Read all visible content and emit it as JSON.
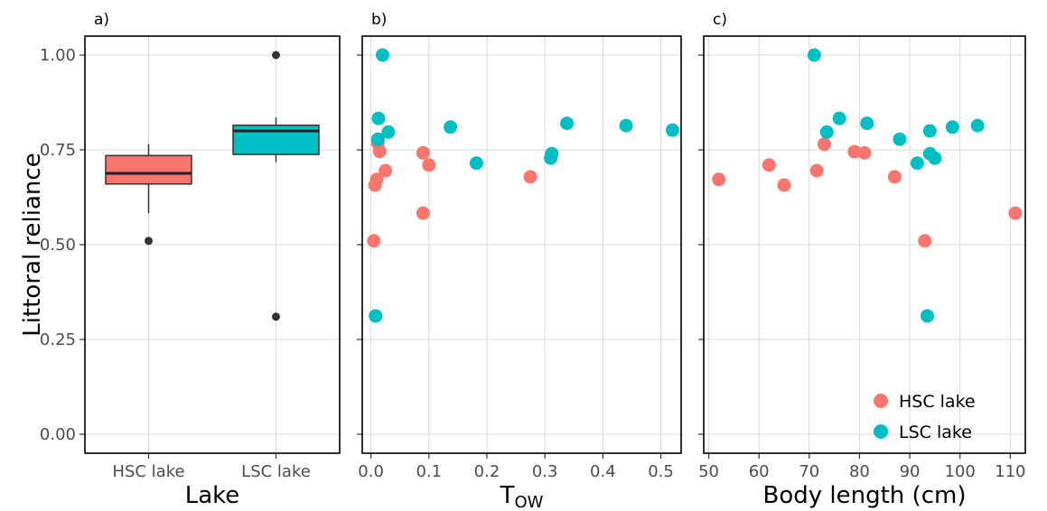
{
  "colors": {
    "hsc": "#F8766D",
    "lsc": "#00BFC4",
    "grid": "#d9d9d9",
    "outlier": "#333333"
  },
  "ylabel": "Littoral reliance",
  "legend": {
    "position": "bottom-right",
    "hsc": "HSC lake",
    "lsc": "LSC lake"
  },
  "chart_data": [
    {
      "panel": "a)",
      "type": "box",
      "xlabel": "Lake",
      "ylabel": "Littoral reliance",
      "ylim": [
        -0.05,
        1.05
      ],
      "yticks": [
        "0.00",
        "0.25",
        "0.50",
        "0.75",
        "1.00"
      ],
      "categories": [
        "HSC lake",
        "LSC lake"
      ],
      "boxes": [
        {
          "name": "HSC lake",
          "whisker_low": 0.583,
          "q1": 0.66,
          "median": 0.688,
          "q3": 0.735,
          "whisker_high": 0.765,
          "outliers": [
            0.51
          ]
        },
        {
          "name": "LSC lake",
          "whisker_low": 0.718,
          "q1": 0.738,
          "median": 0.8,
          "q3": 0.815,
          "whisker_high": 0.835,
          "outliers": [
            1.0,
            0.31
          ]
        }
      ],
      "grid": true
    },
    {
      "panel": "b)",
      "type": "scatter",
      "xlabel_main": "T",
      "xlabel_sub": "OW",
      "xlim": [
        -0.015,
        0.535
      ],
      "ylim": [
        -0.05,
        1.05
      ],
      "xticks": [
        "0.0",
        "0.1",
        "0.2",
        "0.3",
        "0.4",
        "0.5"
      ],
      "grid": true,
      "series": [
        {
          "name": "HSC lake",
          "points": [
            [
              0.005,
              0.51
            ],
            [
              0.007,
              0.657
            ],
            [
              0.01,
              0.672
            ],
            [
              0.012,
              0.768
            ],
            [
              0.015,
              0.746
            ],
            [
              0.025,
              0.695
            ],
            [
              0.09,
              0.742
            ],
            [
              0.09,
              0.583
            ],
            [
              0.1,
              0.71
            ],
            [
              0.275,
              0.679
            ]
          ]
        },
        {
          "name": "LSC lake",
          "points": [
            [
              0.008,
              0.312
            ],
            [
              0.012,
              0.778
            ],
            [
              0.013,
              0.833
            ],
            [
              0.02,
              1.0
            ],
            [
              0.03,
              0.797
            ],
            [
              0.137,
              0.81
            ],
            [
              0.182,
              0.715
            ],
            [
              0.31,
              0.728
            ],
            [
              0.312,
              0.74
            ],
            [
              0.338,
              0.82
            ],
            [
              0.44,
              0.814
            ],
            [
              0.52,
              0.802
            ]
          ]
        }
      ]
    },
    {
      "panel": "c)",
      "type": "scatter",
      "xlabel": "Body length (cm)",
      "xlim": [
        49,
        113
      ],
      "ylim": [
        -0.05,
        1.05
      ],
      "xticks": [
        "50",
        "60",
        "70",
        "80",
        "90",
        "100",
        "110"
      ],
      "grid": true,
      "series": [
        {
          "name": "HSC lake",
          "points": [
            [
              52,
              0.672
            ],
            [
              62,
              0.71
            ],
            [
              65,
              0.657
            ],
            [
              71.5,
              0.695
            ],
            [
              73,
              0.765
            ],
            [
              79,
              0.745
            ],
            [
              81,
              0.742
            ],
            [
              87,
              0.679
            ],
            [
              93,
              0.51
            ],
            [
              111,
              0.583
            ]
          ]
        },
        {
          "name": "LSC lake",
          "points": [
            [
              71,
              1.0
            ],
            [
              73.5,
              0.797
            ],
            [
              76,
              0.833
            ],
            [
              81.5,
              0.82
            ],
            [
              88,
              0.778
            ],
            [
              91.5,
              0.715
            ],
            [
              93.5,
              0.312
            ],
            [
              94,
              0.74
            ],
            [
              94,
              0.8
            ],
            [
              95,
              0.728
            ],
            [
              98.5,
              0.81
            ],
            [
              103.5,
              0.814
            ]
          ]
        }
      ]
    }
  ]
}
